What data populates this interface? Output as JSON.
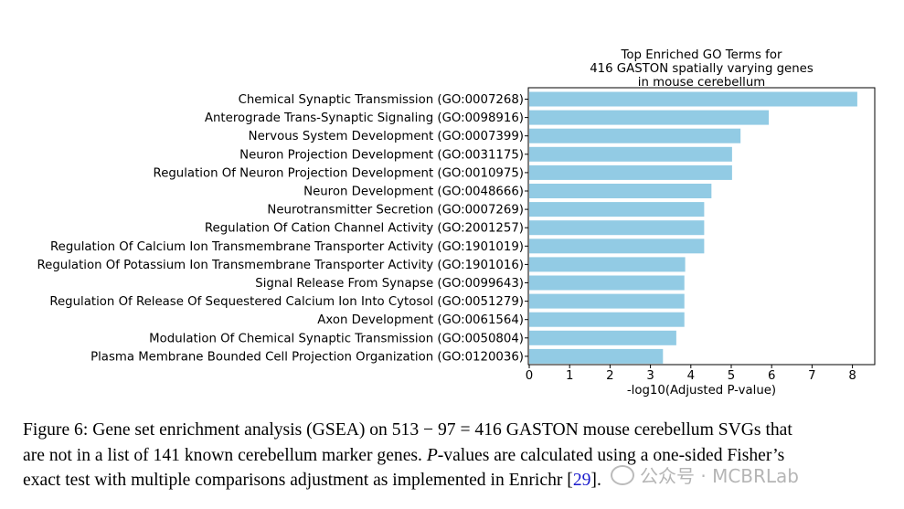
{
  "chart_data": {
    "type": "bar",
    "orientation": "horizontal",
    "title_lines": [
      "Top Enriched GO Terms for",
      "416 GASTON spatially varying genes",
      "in mouse cerebellum"
    ],
    "xlabel": "-log10(Adjusted P-value)",
    "ylabel": "",
    "xlim": [
      0,
      8.5
    ],
    "xticks": [
      0,
      1,
      2,
      3,
      4,
      5,
      6,
      7,
      8
    ],
    "bar_color": "#92cbe4",
    "categories": [
      "Chemical Synaptic Transmission (GO:0007268)",
      "Anterograde Trans-Synaptic Signaling (GO:0098916)",
      "Nervous System Development (GO:0007399)",
      "Neuron Projection Development (GO:0031175)",
      "Regulation Of Neuron Projection Development (GO:0010975)",
      "Neuron Development (GO:0048666)",
      "Neurotransmitter Secretion (GO:0007269)",
      "Regulation Of Cation Channel Activity (GO:2001257)",
      "Regulation Of Calcium Ion Transmembrane Transporter Activity (GO:1901019)",
      "Regulation Of Potassium Ion Transmembrane Transporter Activity (GO:1901016)",
      "Signal Release From Synapse (GO:0099643)",
      "Regulation Of Release Of Sequestered Calcium Ion Into Cytosol (GO:0051279)",
      "Axon Development (GO:0061564)",
      "Modulation Of Chemical Synaptic Transmission (GO:0050804)",
      "Plasma Membrane Bounded Cell Projection Organization (GO:0120036)"
    ],
    "values": [
      8.12,
      5.93,
      5.23,
      5.02,
      5.02,
      4.51,
      4.33,
      4.33,
      4.33,
      3.86,
      3.84,
      3.84,
      3.84,
      3.64,
      3.31
    ]
  },
  "caption": {
    "line1": "Figure 6: Gene set enrichment analysis (GSEA) on 513 − 97 = 416 GASTON mouse cerebellum SVGs that",
    "line2_a": "are not in a list of 141 known cerebellum marker genes. ",
    "line2_italic": "P",
    "line2_b": "-values are calculated using a one-sided Fisher’s",
    "line3_a": "exact test with multiple comparisons adjustment as implemented in Enrichr [",
    "line3_ref": "29",
    "line3_b": "]."
  },
  "watermark": {
    "text": "公众号 · MCBRLab"
  }
}
